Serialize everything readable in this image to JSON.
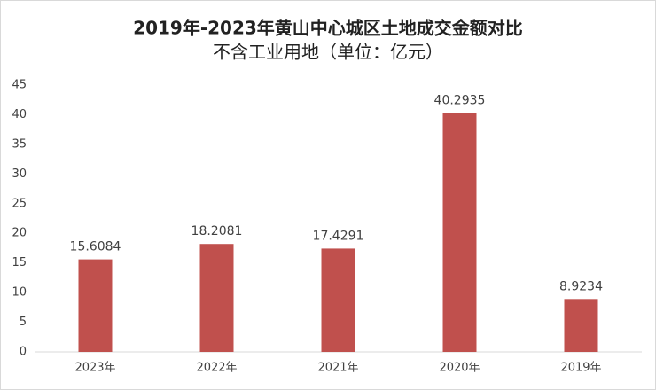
{
  "chart_data": {
    "type": "bar",
    "title": "2019年-2023年黄山中心城区土地成交金额对比",
    "subtitle": "不含工业用地（单位：亿元）",
    "categories": [
      "2023年",
      "2022年",
      "2021年",
      "2020年",
      "2019年"
    ],
    "values": [
      15.6084,
      18.2081,
      17.4291,
      40.2935,
      8.9234
    ],
    "color": "#c0504d",
    "ylim": [
      0,
      45
    ],
    "yticks": [
      0,
      5,
      10,
      15,
      20,
      25,
      30,
      35,
      40,
      45
    ],
    "grid": false,
    "data_labels": true
  }
}
